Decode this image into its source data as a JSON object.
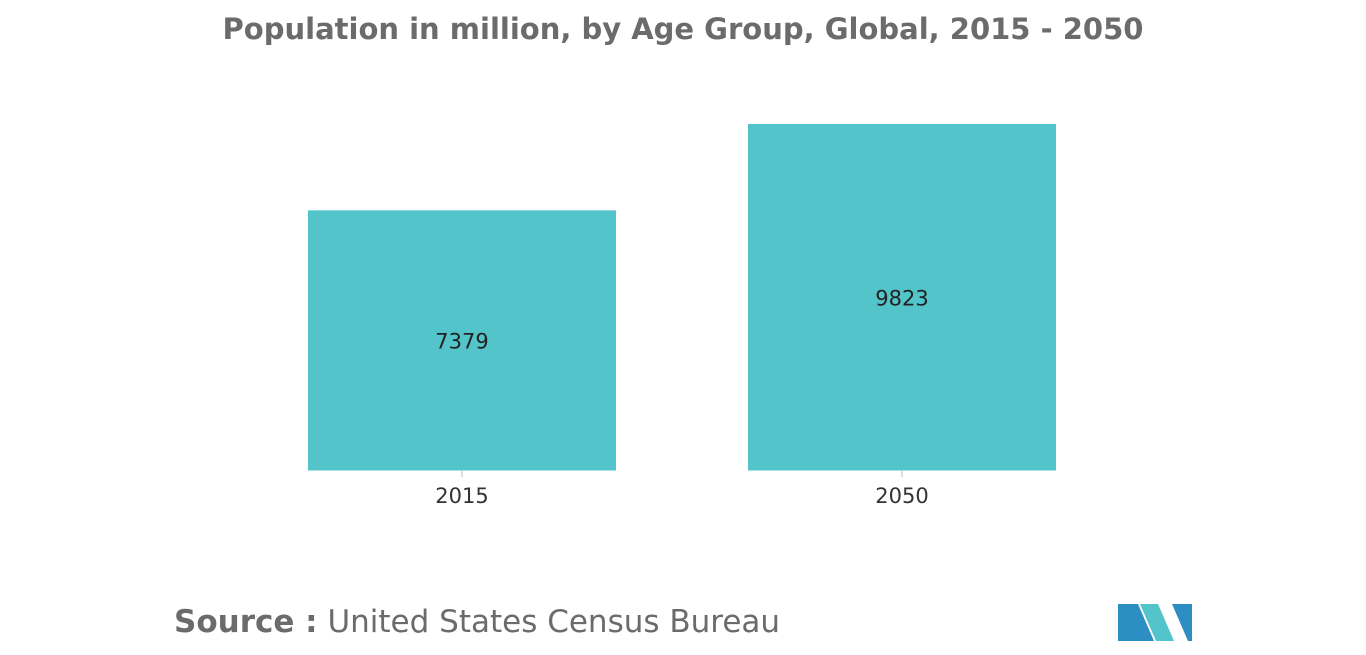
{
  "chart_data": {
    "type": "bar",
    "title": "Population in million, by Age Group, Global, 2015 - 2050",
    "categories": [
      "2015",
      "2050"
    ],
    "values": [
      7379,
      9823
    ],
    "data_labels": [
      "7379",
      "9823"
    ],
    "xlabel": "",
    "ylabel": "",
    "ylim": [
      0,
      9823
    ],
    "grid": false,
    "legend": "none",
    "bar_color": "#52c4ca"
  },
  "source": {
    "label": "Source :",
    "text": "United States Census Bureau"
  },
  "logo": {
    "icon": "mordor-intelligence-logo-icon",
    "colors": [
      "#2c8ec3",
      "#52c4ca"
    ]
  }
}
